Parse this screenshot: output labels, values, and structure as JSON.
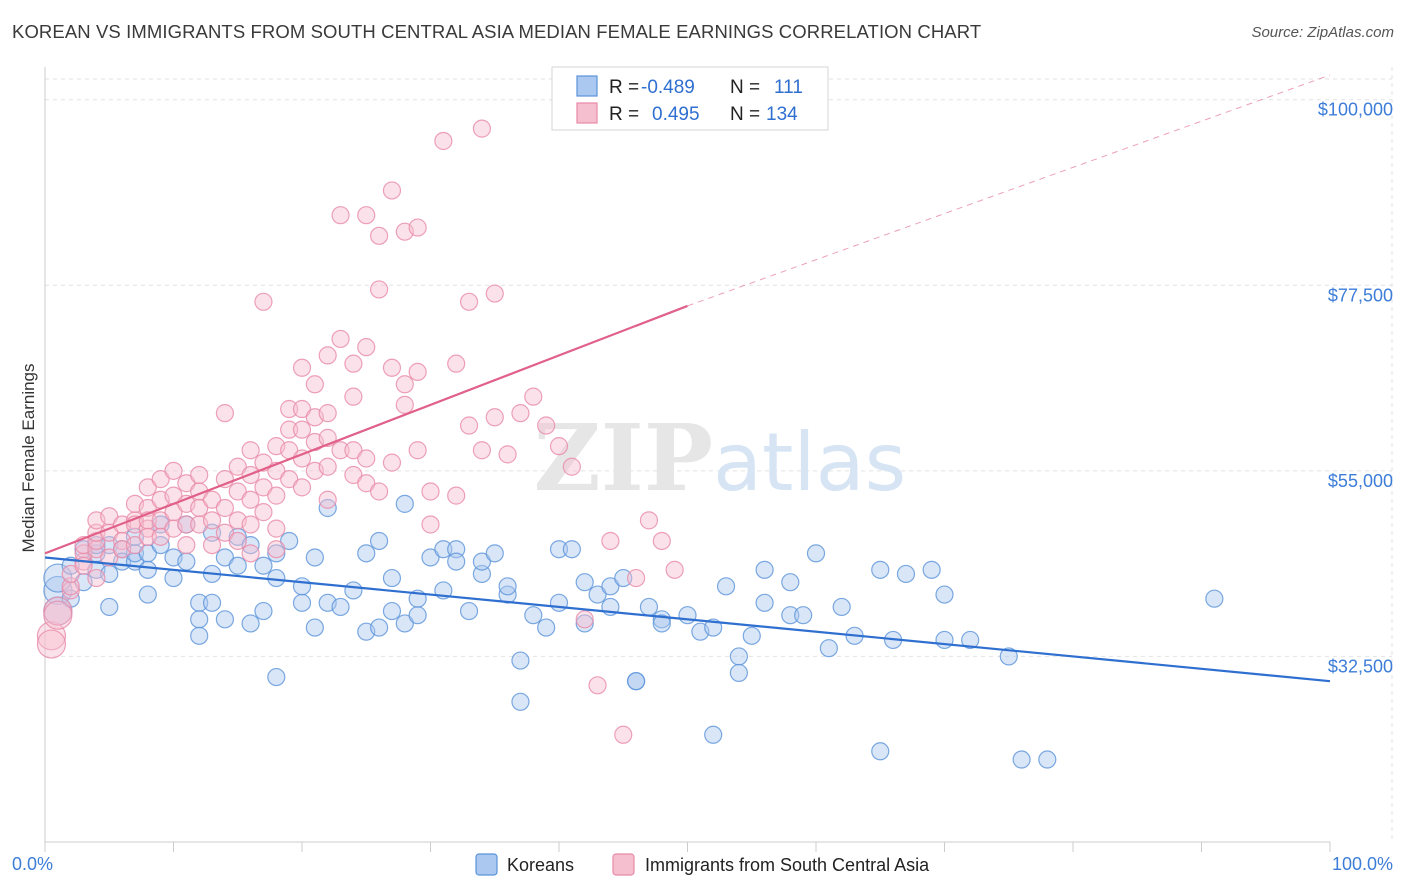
{
  "title": "KOREAN VS IMMIGRANTS FROM SOUTH CENTRAL ASIA MEDIAN FEMALE EARNINGS CORRELATION CHART",
  "source": "Source: ZipAtlas.com",
  "chart_data": {
    "type": "scatter",
    "title": "KOREAN VS IMMIGRANTS FROM SOUTH CENTRAL ASIA MEDIAN FEMALE EARNINGS CORRELATION CHART",
    "xlabel": "",
    "ylabel": "Median Female Earnings",
    "xlim": [
      0,
      100
    ],
    "ylim": [
      10000,
      103000
    ],
    "x_tick_labels": [
      "0.0%",
      "100.0%"
    ],
    "y_ticks": [
      32500,
      55000,
      77500,
      100000
    ],
    "y_tick_labels": [
      "$32,500",
      "$55,000",
      "$77,500",
      "$100,000"
    ],
    "grid": true,
    "legend_position": "top-center",
    "watermark": "ZIPatlas",
    "series": [
      {
        "name": "Koreans",
        "color": "#5b93d9",
        "fill": "#aac8f0",
        "legend_r_label": "R =",
        "legend_r": "-0.489",
        "legend_n_label": "N =",
        "legend_n": "111",
        "trend": {
          "x0": 0,
          "y0": 44500,
          "x1": 100,
          "y1": 29500,
          "color": "#2f6fd0"
        },
        "points": [
          [
            1,
            40500
          ],
          [
            1,
            42000
          ],
          [
            1,
            38000
          ],
          [
            2,
            39500
          ],
          [
            2,
            43500
          ],
          [
            3,
            41500
          ],
          [
            3,
            45500
          ],
          [
            4,
            45000
          ],
          [
            4,
            46000
          ],
          [
            4,
            43000
          ],
          [
            5,
            42500
          ],
          [
            5,
            38500
          ],
          [
            5,
            46000
          ],
          [
            6,
            45500
          ],
          [
            6,
            44000
          ],
          [
            7,
            44000
          ],
          [
            7,
            47000
          ],
          [
            7,
            45000
          ],
          [
            8,
            45000
          ],
          [
            8,
            43000
          ],
          [
            8,
            40000
          ],
          [
            9,
            46000
          ],
          [
            9,
            48500
          ],
          [
            10,
            44500
          ],
          [
            10,
            42000
          ],
          [
            11,
            48500
          ],
          [
            11,
            44000
          ],
          [
            12,
            39000
          ],
          [
            12,
            37000
          ],
          [
            12,
            35000
          ],
          [
            13,
            42500
          ],
          [
            13,
            47500
          ],
          [
            13,
            39000
          ],
          [
            14,
            37000
          ],
          [
            14,
            44500
          ],
          [
            15,
            47000
          ],
          [
            15,
            43500
          ],
          [
            16,
            36500
          ],
          [
            16,
            46000
          ],
          [
            17,
            43500
          ],
          [
            17,
            38000
          ],
          [
            18,
            45000
          ],
          [
            18,
            42000
          ],
          [
            18,
            30000
          ],
          [
            19,
            46500
          ],
          [
            20,
            39000
          ],
          [
            20,
            41000
          ],
          [
            21,
            36000
          ],
          [
            21,
            44500
          ],
          [
            22,
            39000
          ],
          [
            22,
            50500
          ],
          [
            23,
            38500
          ],
          [
            24,
            40500
          ],
          [
            25,
            35500
          ],
          [
            25,
            45000
          ],
          [
            26,
            36000
          ],
          [
            26,
            46500
          ],
          [
            27,
            42000
          ],
          [
            27,
            38000
          ],
          [
            28,
            51000
          ],
          [
            28,
            36500
          ],
          [
            29,
            37500
          ],
          [
            29,
            39500
          ],
          [
            30,
            44500
          ],
          [
            31,
            40500
          ],
          [
            31,
            45500
          ],
          [
            32,
            45500
          ],
          [
            32,
            44000
          ],
          [
            33,
            38000
          ],
          [
            34,
            42500
          ],
          [
            34,
            44000
          ],
          [
            35,
            45000
          ],
          [
            36,
            40000
          ],
          [
            36,
            41000
          ],
          [
            37,
            32000
          ],
          [
            37,
            27000
          ],
          [
            38,
            37500
          ],
          [
            39,
            36000
          ],
          [
            40,
            39000
          ],
          [
            40,
            45500
          ],
          [
            41,
            45500
          ],
          [
            42,
            41500
          ],
          [
            42,
            36500
          ],
          [
            43,
            40000
          ],
          [
            44,
            41000
          ],
          [
            44,
            38500
          ],
          [
            45,
            42000
          ],
          [
            46,
            29500
          ],
          [
            46,
            29500
          ],
          [
            47,
            38500
          ],
          [
            48,
            37000
          ],
          [
            48,
            36500
          ],
          [
            50,
            37500
          ],
          [
            51,
            35500
          ],
          [
            52,
            36000
          ],
          [
            52,
            23000
          ],
          [
            53,
            41000
          ],
          [
            54,
            32500
          ],
          [
            54,
            30500
          ],
          [
            55,
            35000
          ],
          [
            56,
            43000
          ],
          [
            56,
            39000
          ],
          [
            58,
            37500
          ],
          [
            58,
            41500
          ],
          [
            59,
            37500
          ],
          [
            60,
            45000
          ],
          [
            61,
            33500
          ],
          [
            62,
            38500
          ],
          [
            63,
            35000
          ],
          [
            65,
            43000
          ],
          [
            65,
            21000
          ],
          [
            66,
            34500
          ],
          [
            67,
            42500
          ],
          [
            69,
            43000
          ],
          [
            70,
            34500
          ],
          [
            70,
            40000
          ],
          [
            72,
            34500
          ],
          [
            75,
            32500
          ],
          [
            76,
            20000
          ],
          [
            78,
            20000
          ],
          [
            91,
            39500
          ]
        ]
      },
      {
        "name": "Immigrants from South Central Asia",
        "color": "#e88aa8",
        "fill": "#f6bfd0",
        "legend_r_label": "R =",
        "legend_r": "0.495",
        "legend_n_label": "N =",
        "legend_n": "134",
        "trend": {
          "x0": 0,
          "y0": 45000,
          "x1": 50,
          "y1": 75000,
          "x2": 100,
          "y2": 103000,
          "color": "#e0608a"
        },
        "points": [
          [
            0.5,
            35000
          ],
          [
            0.5,
            34000
          ],
          [
            1,
            38000
          ],
          [
            1,
            37500
          ],
          [
            2,
            40500
          ],
          [
            2,
            41000
          ],
          [
            2,
            42500
          ],
          [
            3,
            44000
          ],
          [
            3,
            45000
          ],
          [
            3,
            46000
          ],
          [
            3,
            43500
          ],
          [
            4,
            42000
          ],
          [
            4,
            45500
          ],
          [
            4,
            46500
          ],
          [
            4,
            47500
          ],
          [
            4,
            49000
          ],
          [
            5,
            44500
          ],
          [
            5,
            47500
          ],
          [
            5,
            49500
          ],
          [
            6,
            48500
          ],
          [
            6,
            46500
          ],
          [
            6,
            45500
          ],
          [
            7,
            49000
          ],
          [
            7,
            51000
          ],
          [
            7,
            48500
          ],
          [
            7,
            46000
          ],
          [
            8,
            48000
          ],
          [
            8,
            50500
          ],
          [
            8,
            49000
          ],
          [
            8,
            47000
          ],
          [
            8,
            53000
          ],
          [
            9,
            51500
          ],
          [
            9,
            54000
          ],
          [
            9,
            49000
          ],
          [
            9,
            47000
          ],
          [
            10,
            55000
          ],
          [
            10,
            52000
          ],
          [
            10,
            50000
          ],
          [
            10,
            48000
          ],
          [
            11,
            53500
          ],
          [
            11,
            51000
          ],
          [
            11,
            48500
          ],
          [
            11,
            46000
          ],
          [
            12,
            54500
          ],
          [
            12,
            52500
          ],
          [
            12,
            50500
          ],
          [
            12,
            48500
          ],
          [
            13,
            51500
          ],
          [
            13,
            49000
          ],
          [
            13,
            46000
          ],
          [
            14,
            62000
          ],
          [
            14,
            54000
          ],
          [
            14,
            50500
          ],
          [
            14,
            47500
          ],
          [
            15,
            55500
          ],
          [
            15,
            52500
          ],
          [
            15,
            49000
          ],
          [
            15,
            46500
          ],
          [
            16,
            57500
          ],
          [
            16,
            54500
          ],
          [
            16,
            51500
          ],
          [
            16,
            48500
          ],
          [
            16,
            45000
          ],
          [
            17,
            75500
          ],
          [
            17,
            56000
          ],
          [
            17,
            53000
          ],
          [
            17,
            50000
          ],
          [
            18,
            58000
          ],
          [
            18,
            55000
          ],
          [
            18,
            52000
          ],
          [
            18,
            48000
          ],
          [
            18,
            45500
          ],
          [
            19,
            62500
          ],
          [
            19,
            60000
          ],
          [
            19,
            57500
          ],
          [
            19,
            54000
          ],
          [
            20,
            67500
          ],
          [
            20,
            62500
          ],
          [
            20,
            60000
          ],
          [
            20,
            56500
          ],
          [
            20,
            53000
          ],
          [
            21,
            65500
          ],
          [
            21,
            61500
          ],
          [
            21,
            58500
          ],
          [
            21,
            55000
          ],
          [
            22,
            69000
          ],
          [
            22,
            62000
          ],
          [
            22,
            59000
          ],
          [
            22,
            55500
          ],
          [
            22,
            51500
          ],
          [
            23,
            86000
          ],
          [
            23,
            71000
          ],
          [
            23,
            57500
          ],
          [
            24,
            68000
          ],
          [
            24,
            64000
          ],
          [
            24,
            57500
          ],
          [
            24,
            54500
          ],
          [
            25,
            86000
          ],
          [
            25,
            70000
          ],
          [
            25,
            56500
          ],
          [
            25,
            53500
          ],
          [
            26,
            83500
          ],
          [
            26,
            77000
          ],
          [
            26,
            52500
          ],
          [
            27,
            89000
          ],
          [
            27,
            67500
          ],
          [
            27,
            56000
          ],
          [
            28,
            84000
          ],
          [
            28,
            65500
          ],
          [
            28,
            63000
          ],
          [
            29,
            84500
          ],
          [
            29,
            67000
          ],
          [
            29,
            57500
          ],
          [
            30,
            52500
          ],
          [
            30,
            48500
          ],
          [
            31,
            95000
          ],
          [
            32,
            68000
          ],
          [
            32,
            52000
          ],
          [
            33,
            75500
          ],
          [
            33,
            60500
          ],
          [
            34,
            96500
          ],
          [
            34,
            57500
          ],
          [
            35,
            76500
          ],
          [
            35,
            61500
          ],
          [
            36,
            57000
          ],
          [
            37,
            62000
          ],
          [
            38,
            64000
          ],
          [
            39,
            60500
          ],
          [
            40,
            58000
          ],
          [
            41,
            55500
          ],
          [
            42,
            37000
          ],
          [
            43,
            29000
          ],
          [
            44,
            46500
          ],
          [
            45,
            23000
          ],
          [
            46,
            42000
          ],
          [
            47,
            49000
          ],
          [
            48,
            46500
          ],
          [
            49,
            43000
          ]
        ]
      }
    ]
  },
  "legend": {
    "korean_label": "Koreans",
    "immigrant_label": "Immigrants from South Central Asia"
  }
}
